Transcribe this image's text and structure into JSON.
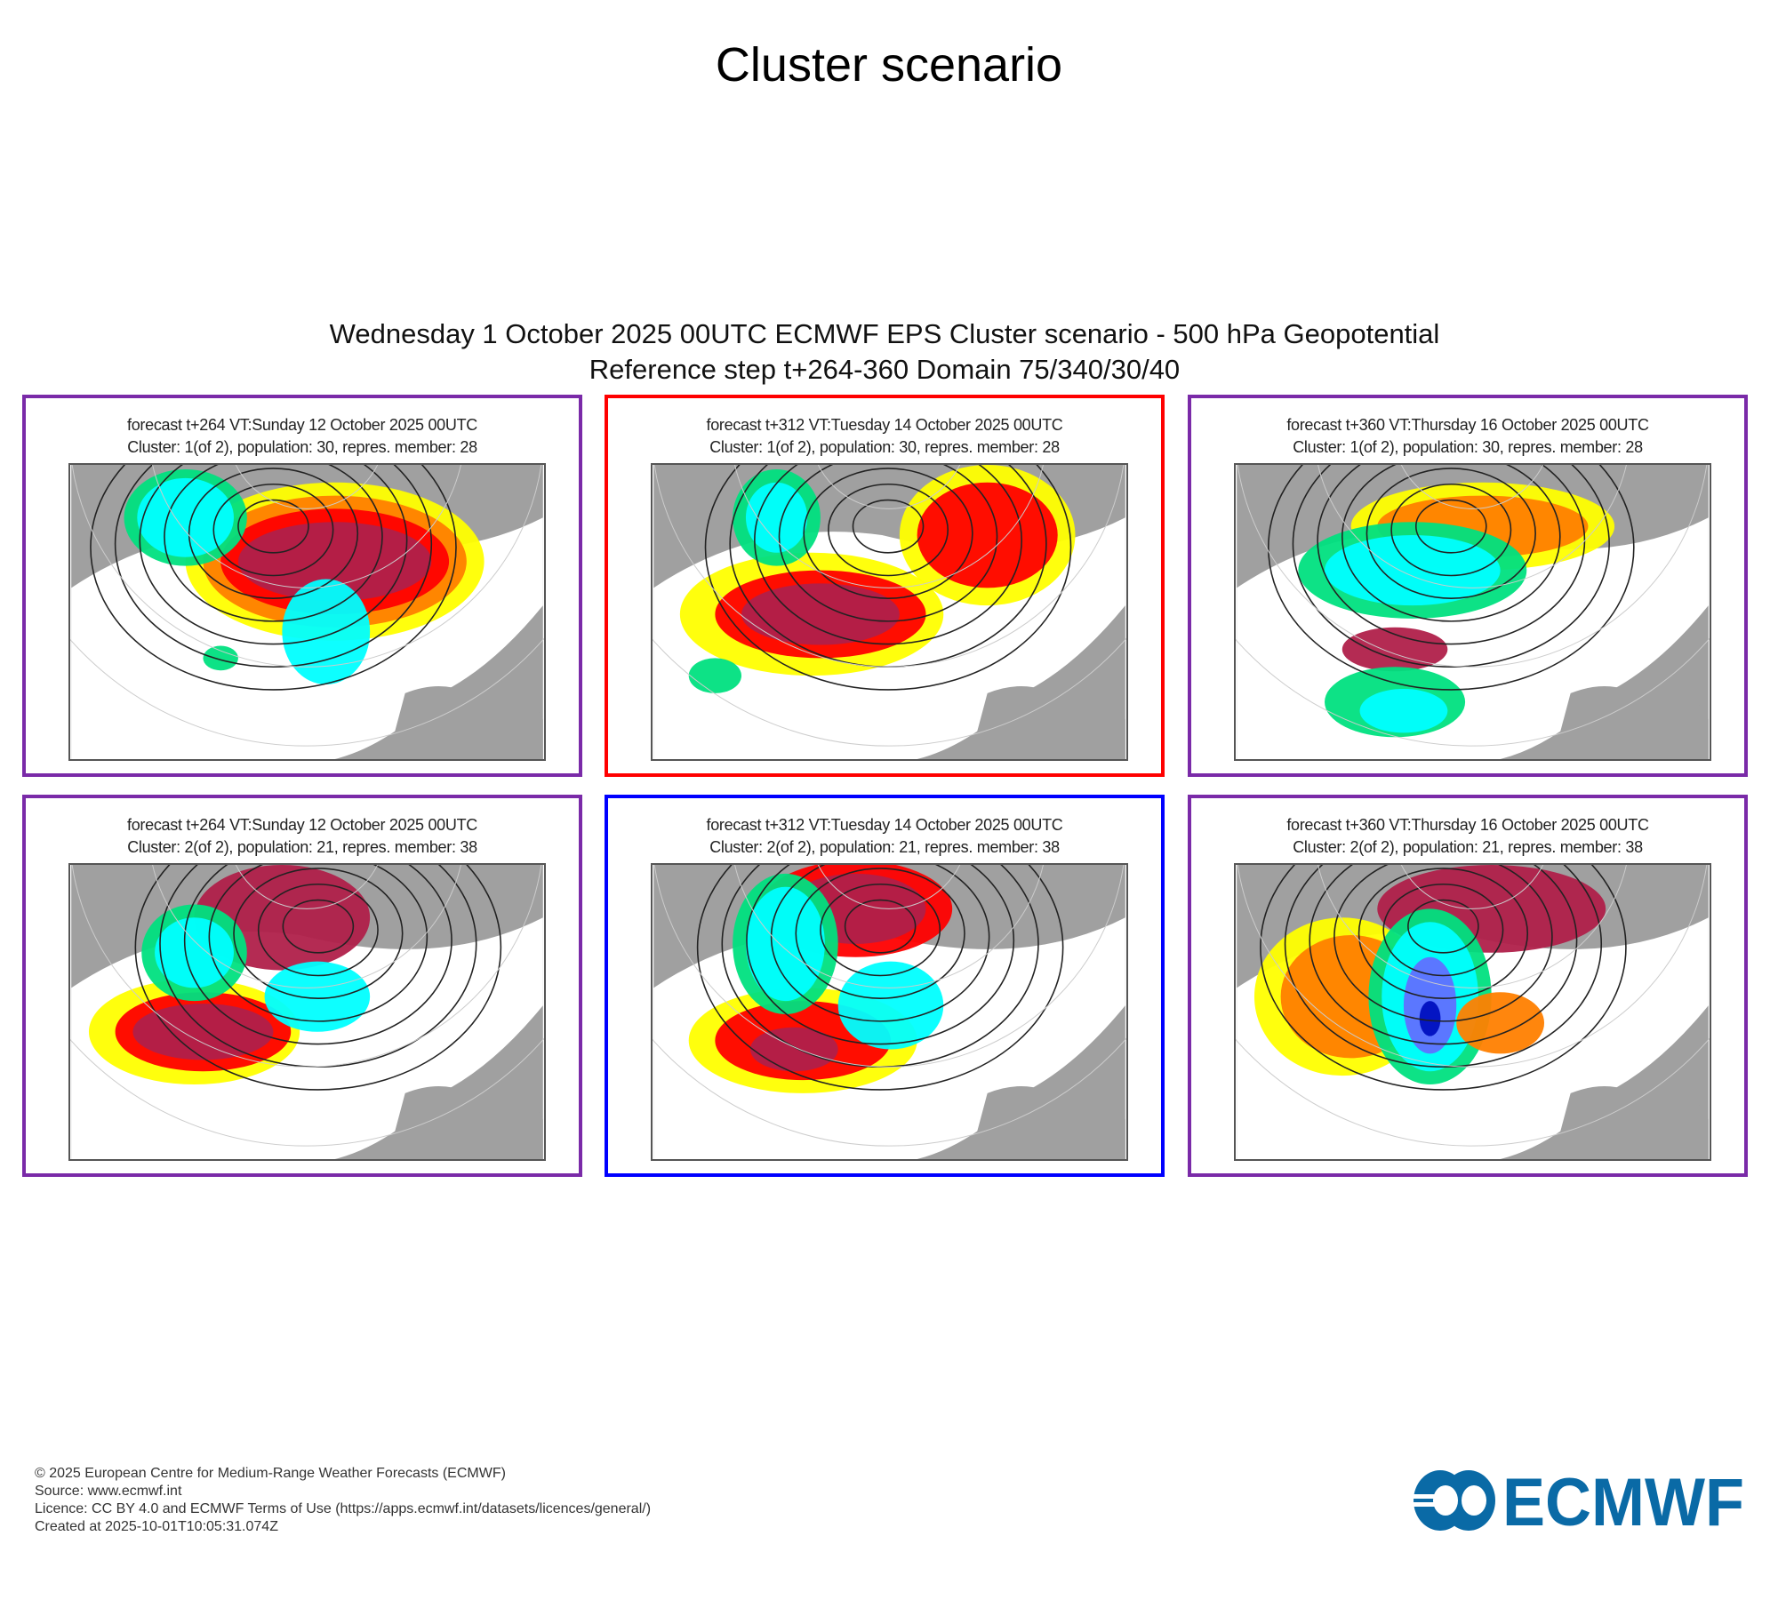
{
  "title": "Cluster scenario",
  "subtitle_line1": "Wednesday 1 October 2025 00UTC ECMWF EPS Cluster scenario - 500 hPa Geopotential",
  "subtitle_line2": "Reference step t+264-360 Domain 75/340/30/40",
  "panels": [
    {
      "line1": "forecast t+264 VT:Sunday 12 October 2025 00UTC",
      "line2": "Cluster: 1(of 2), population: 30, repres. member: 28",
      "border_color": "#7a2aa8"
    },
    {
      "line1": "forecast t+312 VT:Tuesday 14 October 2025 00UTC",
      "line2": "Cluster: 1(of 2), population: 30, repres. member: 28",
      "border_color": "#ff0000"
    },
    {
      "line1": "forecast t+360 VT:Thursday 16 October 2025 00UTC",
      "line2": "Cluster: 1(of 2), population: 30, repres. member: 28",
      "border_color": "#7a2aa8"
    },
    {
      "line1": "forecast t+264 VT:Sunday 12 October 2025 00UTC",
      "line2": "Cluster: 2(of 2), population: 21, repres. member: 38",
      "border_color": "#7a2aa8"
    },
    {
      "line1": "forecast t+312 VT:Tuesday 14 October 2025 00UTC",
      "line2": "Cluster: 2(of 2), population: 21, repres. member: 38",
      "border_color": "#0000ff"
    },
    {
      "line1": "forecast t+360 VT:Thursday 16 October 2025 00UTC",
      "line2": "Cluster: 2(of 2), population: 21, repres. member: 38",
      "border_color": "#7a2aa8"
    }
  ],
  "footer": {
    "copyright": "© 2025 European Centre for Medium-Range Weather Forecasts (ECMWF)",
    "source": "Source: www.ecmwf.int",
    "licence": "Licence: CC BY 4.0 and ECMWF Terms of Use (https://apps.ecmwf.int/datasets/licences/general/)",
    "created": "Created at 2025-10-01T10:05:31.074Z"
  },
  "logo": {
    "text": "ECMWF",
    "color": "#0a6aa6"
  }
}
